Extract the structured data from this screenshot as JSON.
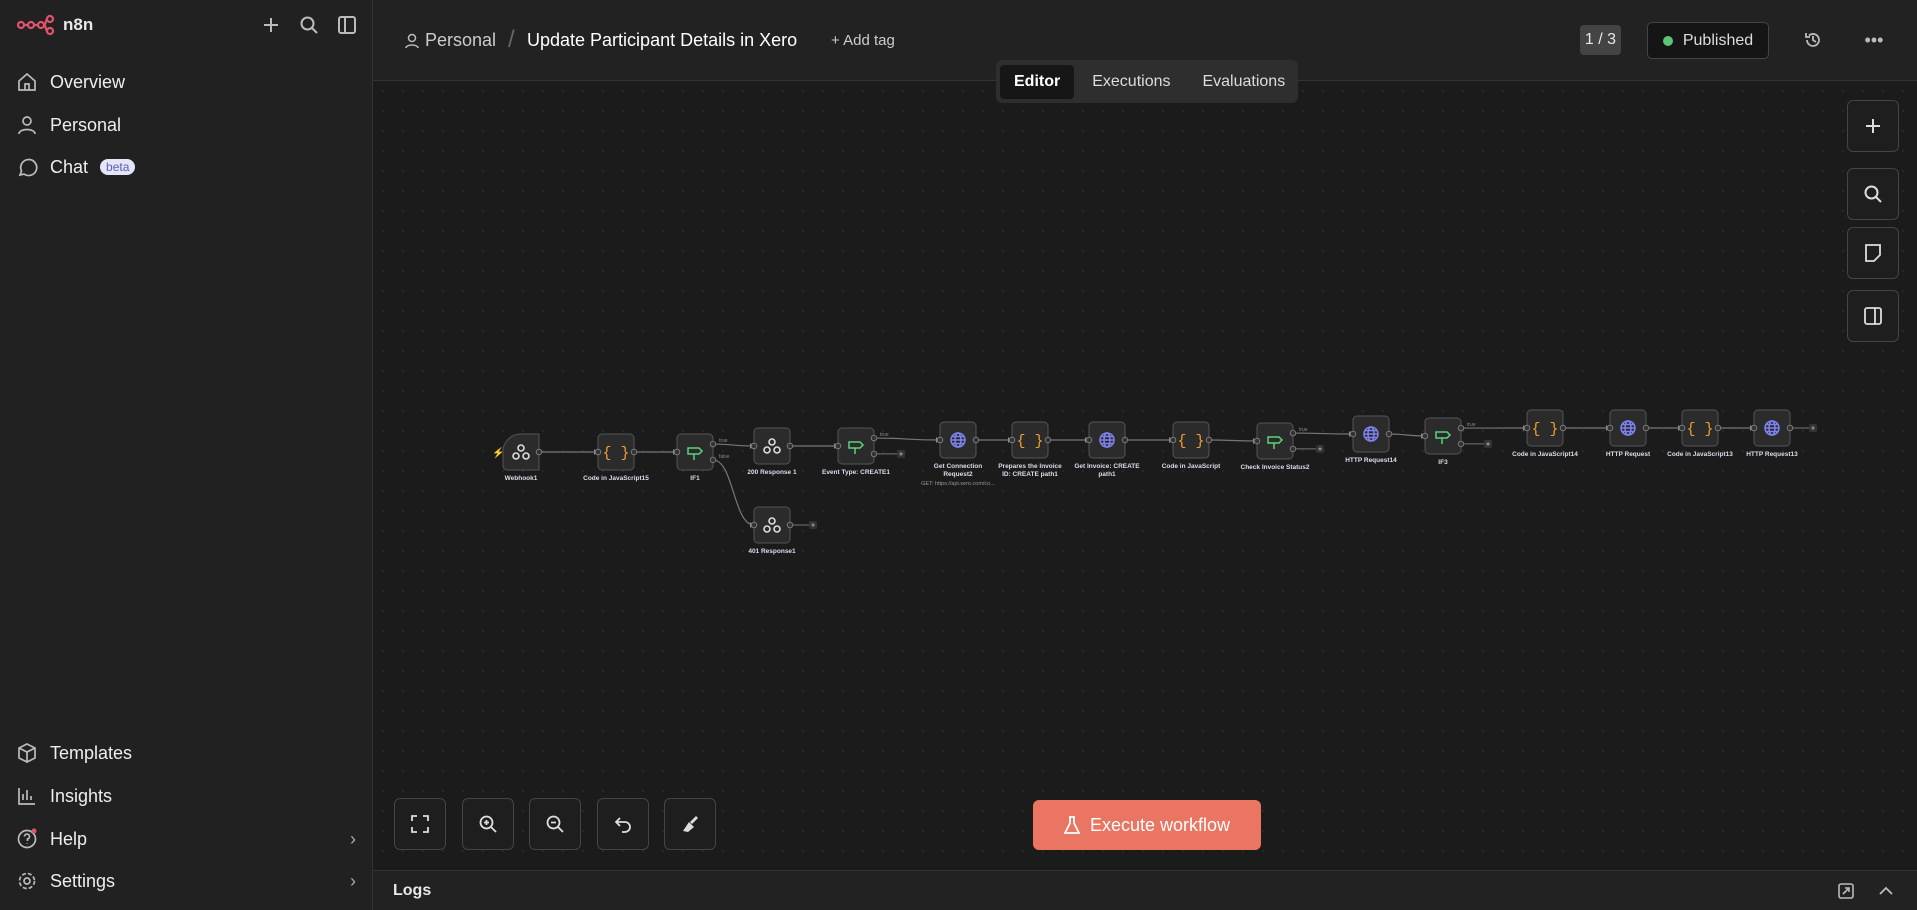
{
  "sidebar": {
    "brand": "n8n",
    "items_top": [
      {
        "label": "Overview",
        "icon": "home-icon"
      },
      {
        "label": "Personal",
        "icon": "user-icon"
      },
      {
        "label": "Chat",
        "icon": "chat-icon",
        "badge": "beta"
      }
    ],
    "items_bottom": [
      {
        "label": "Templates",
        "icon": "box-icon"
      },
      {
        "label": "Insights",
        "icon": "chart-icon"
      },
      {
        "label": "Help",
        "icon": "help-icon",
        "chevron": true
      },
      {
        "label": "Settings",
        "icon": "gear-icon",
        "chevron": true
      }
    ]
  },
  "header": {
    "project": "Personal",
    "separator": "/",
    "title": "Update Participant Details in Xero",
    "add_tag": "+ Add tag",
    "version": "1 / 3",
    "status": "Published",
    "status_color": "#5cc575"
  },
  "tabs": [
    {
      "label": "Editor",
      "active": true
    },
    {
      "label": "Executions"
    },
    {
      "label": "Evaluations"
    }
  ],
  "canvas": {
    "execute_label": "Execute workflow",
    "execute_color": "#ea7562"
  },
  "logs": {
    "label": "Logs"
  },
  "workflow": {
    "nodes": [
      {
        "id": "webhook1",
        "label": "Webhook1",
        "type": "webhook",
        "trigger": true
      },
      {
        "id": "code15",
        "label": "Code in JavaScript15",
        "type": "code"
      },
      {
        "id": "if1",
        "label": "IF1",
        "type": "if"
      },
      {
        "id": "r200",
        "label": "200 Response 1",
        "type": "webhook"
      },
      {
        "id": "r401",
        "label": "401 Response1",
        "type": "webhook"
      },
      {
        "id": "event",
        "label": "Event Type: CREATE1",
        "type": "if"
      },
      {
        "id": "getconn",
        "label": "Get Connection Request2",
        "type": "http",
        "subtitle": "GET: https://api.xero.com/co..."
      },
      {
        "id": "prep",
        "label": "Prepares the Invoice ID: CREATE path1",
        "type": "code"
      },
      {
        "id": "getinv",
        "label": "Get Invoice: CREATE path1",
        "type": "http"
      },
      {
        "id": "codejs",
        "label": "Code in JavaScript",
        "type": "code"
      },
      {
        "id": "check",
        "label": "Check Invoice Status2",
        "type": "if"
      },
      {
        "id": "http14",
        "label": "HTTP Request14",
        "type": "http"
      },
      {
        "id": "if3",
        "label": "IF3",
        "type": "if"
      },
      {
        "id": "code14",
        "label": "Code in JavaScript14",
        "type": "code"
      },
      {
        "id": "http",
        "label": "HTTP Request",
        "type": "http"
      },
      {
        "id": "code13",
        "label": "Code in JavaScript13",
        "type": "code"
      },
      {
        "id": "http13",
        "label": "HTTP Request13",
        "type": "http"
      }
    ],
    "connections": [
      [
        "webhook1",
        "code15"
      ],
      [
        "code15",
        "if1"
      ],
      [
        "if1",
        "r200",
        "true"
      ],
      [
        "if1",
        "r401",
        "false"
      ],
      [
        "r200",
        "event"
      ],
      [
        "event",
        "getconn",
        "true"
      ],
      [
        "getconn",
        "prep"
      ],
      [
        "prep",
        "getinv"
      ],
      [
        "getinv",
        "codejs"
      ],
      [
        "codejs",
        "check"
      ],
      [
        "check",
        "http14",
        "true"
      ],
      [
        "http14",
        "if3"
      ],
      [
        "if3",
        "code14",
        "true"
      ],
      [
        "code14",
        "http"
      ],
      [
        "http",
        "code13"
      ],
      [
        "code13",
        "http13"
      ]
    ],
    "branch_labels": {
      "true": "true",
      "false": "false"
    },
    "colors": {
      "code": "#f0a030",
      "http": "#7f83f0",
      "if": "#5bd27b",
      "webhook": "#dddddd",
      "trigger": "#e8623a"
    }
  }
}
